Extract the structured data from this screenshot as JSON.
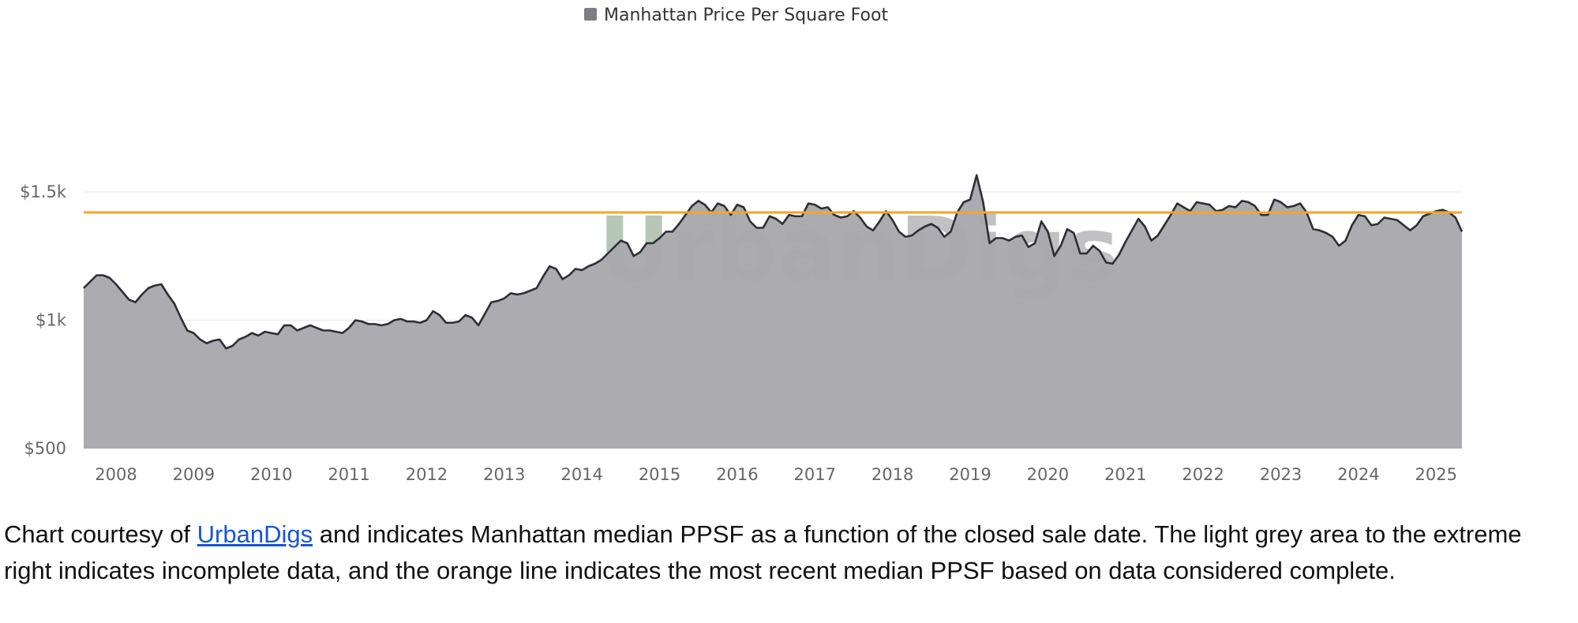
{
  "legend": {
    "label": "Manhattan Price Per Square Foot",
    "swatch_color": "#7d7d84"
  },
  "watermark": {
    "text_green": "Urban",
    "text_grey": "Digs",
    "color_green": "#7e9a7a",
    "color_grey": "#8f8f94"
  },
  "caption": {
    "prefix": "Chart courtesy of ",
    "link_text": "UrbanDigs",
    "suffix": " and indicates Manhattan median PPSF as a function of the closed sale date.  The light grey area to the extreme right indicates incomplete data, and the orange line indicates the most recent median PPSF based on data considered complete."
  },
  "chart_data": {
    "type": "area",
    "series": [
      {
        "name": "Manhattan Price Per Square Foot",
        "color": "#a9a8ad",
        "line_color": "#2e2e36"
      }
    ],
    "x_start": "2007-08",
    "x_step": "1 month",
    "values": [
      1125,
      1150,
      1175,
      1175,
      1165,
      1140,
      1110,
      1080,
      1070,
      1100,
      1125,
      1135,
      1140,
      1100,
      1065,
      1010,
      960,
      950,
      925,
      910,
      920,
      925,
      890,
      900,
      925,
      935,
      950,
      940,
      955,
      950,
      945,
      980,
      980,
      960,
      970,
      980,
      970,
      960,
      960,
      955,
      950,
      970,
      1000,
      995,
      985,
      985,
      980,
      985,
      1000,
      1005,
      995,
      995,
      990,
      1000,
      1035,
      1020,
      990,
      990,
      995,
      1020,
      1010,
      980,
      1025,
      1070,
      1075,
      1085,
      1105,
      1100,
      1105,
      1115,
      1125,
      1170,
      1210,
      1200,
      1160,
      1175,
      1200,
      1195,
      1210,
      1220,
      1235,
      1260,
      1285,
      1310,
      1300,
      1250,
      1265,
      1300,
      1300,
      1320,
      1345,
      1345,
      1375,
      1410,
      1445,
      1465,
      1450,
      1420,
      1455,
      1445,
      1410,
      1450,
      1440,
      1385,
      1360,
      1360,
      1405,
      1395,
      1375,
      1410,
      1405,
      1405,
      1455,
      1450,
      1435,
      1440,
      1410,
      1400,
      1405,
      1425,
      1400,
      1365,
      1350,
      1385,
      1425,
      1390,
      1345,
      1325,
      1330,
      1350,
      1365,
      1375,
      1360,
      1325,
      1345,
      1420,
      1460,
      1470,
      1565,
      1460,
      1300,
      1320,
      1320,
      1310,
      1325,
      1330,
      1285,
      1300,
      1385,
      1345,
      1250,
      1290,
      1355,
      1340,
      1260,
      1260,
      1290,
      1270,
      1225,
      1220,
      1255,
      1305,
      1350,
      1395,
      1365,
      1310,
      1330,
      1370,
      1410,
      1455,
      1440,
      1425,
      1460,
      1455,
      1450,
      1425,
      1430,
      1445,
      1440,
      1465,
      1460,
      1445,
      1410,
      1410,
      1470,
      1460,
      1440,
      1445,
      1455,
      1420,
      1355,
      1350,
      1340,
      1325,
      1290,
      1310,
      1370,
      1410,
      1405,
      1370,
      1375,
      1400,
      1395,
      1390,
      1370,
      1350,
      1370,
      1405,
      1415,
      1425,
      1430,
      1420,
      1400,
      1345
    ],
    "incomplete_from_index": 213,
    "reference_line": {
      "value": 1420,
      "color": "#f5a623"
    },
    "incomplete_color": "#c8ccd0",
    "x_ticks": [
      "2008",
      "2009",
      "2010",
      "2011",
      "2012",
      "2013",
      "2014",
      "2015",
      "2016",
      "2017",
      "2018",
      "2019",
      "2020",
      "2021",
      "2022",
      "2023",
      "2024",
      "2025"
    ],
    "y_ticks": [
      {
        "value": 500,
        "label": "$500"
      },
      {
        "value": 1000,
        "label": "$1k"
      },
      {
        "value": 1500,
        "label": "$1.5k"
      }
    ],
    "ylim": [
      500,
      1740
    ],
    "grid": true,
    "legend_position": "top-center"
  }
}
